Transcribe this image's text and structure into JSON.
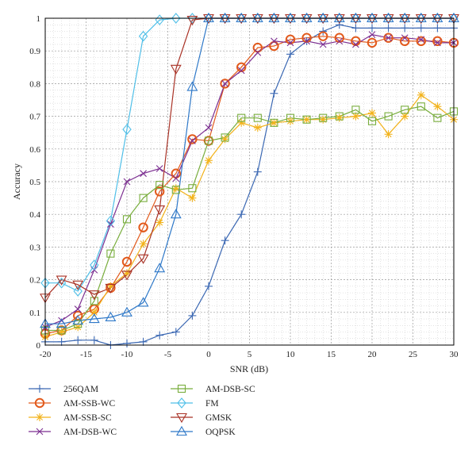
{
  "chart_data": {
    "type": "line",
    "xlabel": "SNR (dB)",
    "ylabel": "Accuracy",
    "xlim": [
      -20,
      30
    ],
    "ylim": [
      0,
      1
    ],
    "xticks": [
      -20,
      -15,
      -10,
      -5,
      0,
      5,
      10,
      15,
      20,
      25,
      30
    ],
    "yticks": [
      0,
      0.1,
      0.2,
      0.3,
      0.4,
      0.5,
      0.6,
      0.7,
      0.8,
      0.9,
      1
    ],
    "ytick_labels": [
      "0",
      "0.1",
      "0.2",
      "0.3",
      "0.4",
      "0.5",
      "0.6",
      "0.7",
      "0.8",
      "0.9",
      "1"
    ],
    "grid": true,
    "legend_position": "bottom, two columns",
    "x": [
      -20,
      -18,
      -16,
      -14,
      -12,
      -10,
      -8,
      -6,
      -4,
      -2,
      0,
      2,
      4,
      6,
      8,
      10,
      12,
      14,
      16,
      18,
      20,
      22,
      24,
      26,
      28,
      30
    ],
    "series": [
      {
        "name": "256QAM",
        "color": "#3a67b2",
        "marker": "plus",
        "values": [
          0.01,
          0.01,
          0.015,
          0.015,
          0.0,
          0.005,
          0.01,
          0.03,
          0.04,
          0.09,
          0.18,
          0.32,
          0.4,
          0.53,
          0.77,
          0.89,
          0.93,
          0.96,
          0.98,
          0.97,
          0.97,
          0.97,
          0.97,
          0.97,
          0.97,
          0.97
        ]
      },
      {
        "name": "AM-SSB-WC",
        "color": "#e25a1c",
        "marker": "circle",
        "values": [
          0.035,
          0.045,
          0.09,
          0.11,
          0.175,
          0.255,
          0.36,
          0.47,
          0.525,
          0.63,
          0.625,
          0.8,
          0.85,
          0.91,
          0.915,
          0.935,
          0.94,
          0.945,
          0.94,
          0.93,
          0.925,
          0.94,
          0.93,
          0.93,
          0.93,
          0.925
        ]
      },
      {
        "name": "AM-SSB-SC",
        "color": "#f2b21a",
        "marker": "asterisk",
        "values": [
          0.025,
          0.04,
          0.055,
          0.1,
          0.18,
          0.22,
          0.31,
          0.375,
          0.48,
          0.45,
          0.565,
          0.63,
          0.68,
          0.665,
          0.68,
          0.685,
          0.69,
          0.69,
          0.695,
          0.7,
          0.71,
          0.645,
          0.7,
          0.765,
          0.73,
          0.69
        ]
      },
      {
        "name": "AM-DSB-WC",
        "color": "#7c2f91",
        "marker": "cross",
        "values": [
          0.055,
          0.075,
          0.11,
          0.23,
          0.37,
          0.5,
          0.525,
          0.54,
          0.51,
          0.625,
          0.665,
          0.8,
          0.84,
          0.895,
          0.93,
          0.925,
          0.93,
          0.92,
          0.93,
          0.92,
          0.95,
          0.94,
          0.94,
          0.935,
          0.925,
          0.925
        ]
      },
      {
        "name": "AM-DSB-SC",
        "color": "#78ad3c",
        "marker": "square",
        "values": [
          0.045,
          0.045,
          0.065,
          0.135,
          0.28,
          0.385,
          0.45,
          0.49,
          0.475,
          0.48,
          0.625,
          0.635,
          0.695,
          0.695,
          0.68,
          0.695,
          0.69,
          0.695,
          0.7,
          0.72,
          0.685,
          0.7,
          0.72,
          0.73,
          0.695,
          0.715
        ]
      },
      {
        "name": "FM",
        "color": "#4fbfe8",
        "marker": "diamond",
        "values": [
          0.19,
          0.19,
          0.165,
          0.245,
          0.38,
          0.66,
          0.945,
          0.995,
          1.0,
          1.0,
          1.0,
          1.0,
          1.0,
          1.0,
          1.0,
          1.0,
          1.0,
          1.0,
          1.0,
          1.0,
          1.0,
          1.0,
          1.0,
          1.0,
          1.0,
          1.0
        ]
      },
      {
        "name": "GMSK",
        "color": "#a93226",
        "marker": "triangle-down",
        "values": [
          0.145,
          0.2,
          0.185,
          0.155,
          0.175,
          0.215,
          0.265,
          0.415,
          0.845,
          0.995,
          1.0,
          1.0,
          1.0,
          1.0,
          1.0,
          1.0,
          1.0,
          1.0,
          1.0,
          1.0,
          1.0,
          1.0,
          1.0,
          1.0,
          1.0,
          1.0
        ]
      },
      {
        "name": "OQPSK",
        "color": "#2e78c8",
        "marker": "triangle-up",
        "values": [
          0.065,
          0.065,
          0.075,
          0.08,
          0.085,
          0.1,
          0.13,
          0.235,
          0.4,
          0.79,
          1.0,
          1.0,
          1.0,
          1.0,
          1.0,
          1.0,
          1.0,
          1.0,
          1.0,
          1.0,
          1.0,
          1.0,
          1.0,
          1.0,
          1.0,
          1.0
        ]
      }
    ]
  }
}
